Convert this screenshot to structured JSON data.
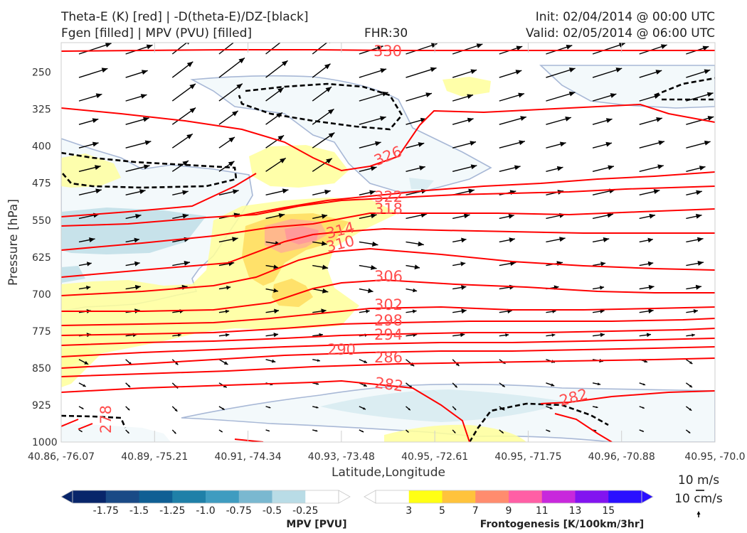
{
  "header": {
    "title_line1": "Theta-E (K) [red] | -D(theta-E)/DZ-[black]",
    "title_line2": "Fgen [filled] | MPV (PVU) [filled]",
    "fhr": "FHR:30",
    "init": "Init: 02/04/2014 @ 00:00 UTC",
    "valid": "Valid: 02/05/2014 @ 06:00 UTC"
  },
  "chart_data": {
    "type": "cross-section",
    "xlabel": "Latitude,Longitude",
    "ylabel": "Pressure [hPa]",
    "x_ticks": [
      "40.86, -76.07",
      "40.89, -75.21",
      "40.91, -74.34",
      "40.93, -73.48",
      "40.95, -72.61",
      "40.95, -71.75",
      "40.96, -70.88",
      "40.95, -70.0"
    ],
    "y_ticks": [
      250,
      325,
      400,
      475,
      550,
      625,
      700,
      775,
      850,
      925,
      1000
    ],
    "y_range": [
      190,
      1000
    ],
    "y_axis_inverted": true,
    "theta_e_labels": [
      "330",
      "326",
      "322",
      "318",
      "314",
      "310",
      "306",
      "302",
      "298",
      "294",
      "290",
      "286",
      "282",
      "282",
      "278"
    ],
    "theta_e_color": "#ff0000",
    "stability_contour_color": "#000000",
    "vector_reference": {
      "label_top": "10 m/s",
      "label_bottom": "10 cm/s"
    },
    "mpv_colorbar": {
      "label": "MPV [PVU]",
      "ticks": [
        "-1.75",
        "-1.5",
        "-1.25",
        "-1.0",
        "-0.75",
        "-0.5",
        "-0.25"
      ],
      "colors": [
        "#08256a",
        "#1a4a86",
        "#0f5f94",
        "#1f80a8",
        "#3f9cc0",
        "#7ab8d0",
        "#b9dce6",
        "#ffffff"
      ]
    },
    "fgen_colorbar": {
      "label": "Frontogenesis [K/100km/3hr]",
      "ticks": [
        "3",
        "5",
        "7",
        "9",
        "11",
        "13",
        "15"
      ],
      "colors": [
        "#ffffff",
        "#ffff14",
        "#ffc33c",
        "#ff8c6e",
        "#ff5fa5",
        "#c828dc",
        "#8214f0",
        "#2a10ff"
      ]
    }
  }
}
